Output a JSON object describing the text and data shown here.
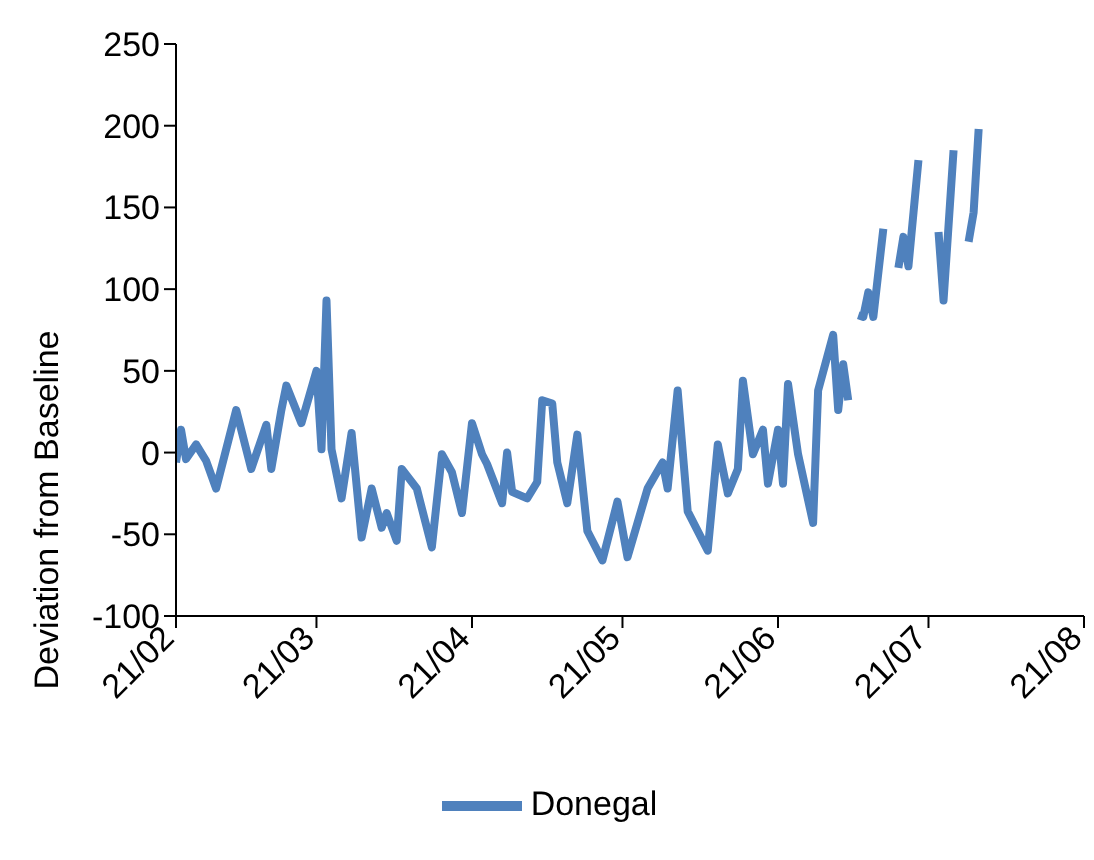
{
  "chart_data": {
    "type": "line",
    "ylabel": "Deviation from Baseline",
    "x": [
      "--02-01",
      "--02-02",
      "--02-03",
      "--02-05",
      "--02-06",
      "--02-07",
      "--02-09",
      "--02-13",
      "--02-16",
      "--02-19",
      "--02-20",
      "--02-22",
      "--02-23",
      "--02-26",
      "--03-01",
      "--03-02",
      "--03-03",
      "--03-04",
      "--03-06",
      "--03-08",
      "--03-10",
      "--03-12",
      "--03-14",
      "--03-15",
      "--03-17",
      "--03-18",
      "--03-21",
      "--03-24",
      "--03-26",
      "--03-28",
      "--03-30",
      "--04-01",
      "--04-03",
      "--04-04",
      "--04-07",
      "--04-08",
      "--04-09",
      "--04-12",
      "--04-14",
      "--04-15",
      "--04-17",
      "--04-18",
      "--04-20",
      "--04-22",
      "--04-24",
      "--04-27",
      "--04-30",
      "--05-02",
      "--05-06",
      "--05-09",
      "--05-10",
      "--05-12",
      "--05-14",
      "--05-18",
      "--05-20",
      "--05-22",
      "--05-24",
      "--05-25",
      "--05-27",
      "--05-29",
      "--05-30",
      "--06-01",
      "--06-02",
      "--06-03",
      "--06-05",
      "--06-08",
      "--06-09",
      "--06-12",
      "--06-13",
      "--06-14",
      "--06-15",
      "--06-16",
      "--06-17",
      "--06-18",
      "--06-19",
      "--06-20",
      "--06-22",
      "--06-23",
      "--06-25",
      "--06-26",
      "--06-27",
      "--06-29",
      "--07-01",
      "--07-03",
      "--07-04",
      "--07-06",
      "--07-07",
      "--07-09",
      "--07-10",
      "--07-11"
    ],
    "series": [
      {
        "name": "Donegal",
        "color": "#4f81bd",
        "values": [
          -6,
          14,
          -4,
          5,
          0,
          -5,
          -22,
          26,
          -10,
          17,
          -10,
          26,
          41,
          18,
          50,
          2,
          93,
          2,
          -28,
          12,
          -52,
          -22,
          -46,
          -37,
          -54,
          -10,
          -22,
          -58,
          -1,
          -12,
          -37,
          18,
          -1,
          -7,
          -31,
          0,
          -24,
          -28,
          -18,
          32,
          30,
          -6,
          -31,
          11,
          -48,
          -66,
          -30,
          -64,
          -22,
          -6,
          -22,
          38,
          -36,
          -60,
          5,
          -25,
          -10,
          44,
          -1,
          14,
          -19,
          14,
          -19,
          42,
          -1,
          -43,
          38,
          72,
          26,
          54,
          32,
          null,
          84,
          83,
          98,
          83,
          137,
          null,
          113,
          132,
          114,
          179,
          null,
          135,
          93,
          185,
          null,
          129,
          147,
          198
        ]
      }
    ],
    "xlim": [
      "--02-01",
      "--08-01"
    ],
    "xticks": [
      {
        "value": "--02-01",
        "label": "21/02"
      },
      {
        "value": "--03-01",
        "label": "21/03"
      },
      {
        "value": "--04-01",
        "label": "21/04"
      },
      {
        "value": "--05-01",
        "label": "21/05"
      },
      {
        "value": "--06-01",
        "label": "21/06"
      },
      {
        "value": "--07-01",
        "label": "21/07"
      },
      {
        "value": "--08-01",
        "label": "21/08"
      }
    ],
    "ylim": [
      -100,
      250
    ],
    "yticks": [
      -100,
      -50,
      0,
      50,
      100,
      150,
      200,
      250
    ],
    "grid": false,
    "legend": "bottom",
    "marker": "none",
    "line_style": "solid"
  }
}
